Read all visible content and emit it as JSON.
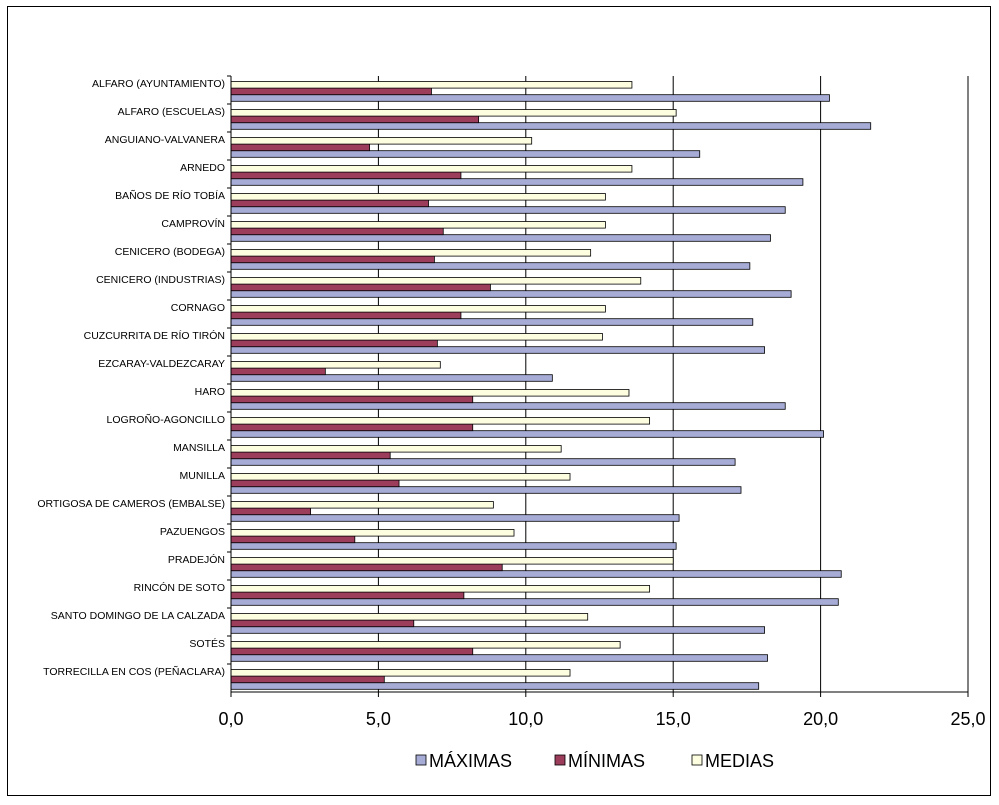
{
  "chart_data": {
    "type": "bar",
    "orientation": "horizontal",
    "categories": [
      "ALFARO (AYUNTAMIENTO)",
      "ALFARO (ESCUELAS)",
      "ANGUIANO-VALVANERA",
      "ARNEDO",
      "BAÑOS DE RÍO TOBÍA",
      "CAMPROVÍN",
      "CENICERO (BODEGA)",
      "CENICERO (INDUSTRIAS)",
      "CORNAGO",
      "CUZCURRITA DE RÍO TIRÓN",
      "EZCARAY-VALDEZCARAY",
      "HARO",
      "LOGROÑO-AGONCILLO",
      "MANSILLA",
      "MUNILLA",
      "ORTIGOSA DE CAMEROS (EMBALSE)",
      "PAZUENGOS",
      "PRADEJÓN",
      "RINCÓN DE SOTO",
      "SANTO DOMINGO DE LA CALZADA",
      "SOTÉS",
      "TORRECILLA EN COS (PEÑACLARA)"
    ],
    "series": [
      {
        "name": "MÁXIMAS",
        "color": "#a6acd6",
        "values": [
          20.3,
          21.7,
          15.9,
          19.4,
          18.8,
          18.3,
          17.6,
          19.0,
          17.7,
          18.1,
          10.9,
          18.8,
          20.1,
          17.1,
          17.3,
          15.2,
          15.1,
          20.7,
          20.6,
          18.1,
          18.2,
          17.9
        ]
      },
      {
        "name": "MÍNIMAS",
        "color": "#9c3d5c",
        "values": [
          6.8,
          8.4,
          4.7,
          7.8,
          6.7,
          7.2,
          6.9,
          8.8,
          7.8,
          7.0,
          3.2,
          8.2,
          8.2,
          5.4,
          5.7,
          2.7,
          4.2,
          9.2,
          7.9,
          6.2,
          8.2,
          5.2
        ]
      },
      {
        "name": "MEDIAS",
        "color": "#fdfde0",
        "values": [
          13.6,
          15.1,
          10.2,
          13.6,
          12.7,
          12.7,
          12.2,
          13.9,
          12.7,
          12.6,
          7.1,
          13.5,
          14.2,
          11.2,
          11.5,
          8.9,
          9.6,
          15.0,
          14.2,
          12.1,
          13.2,
          11.5
        ]
      }
    ],
    "xlim": [
      0,
      25
    ],
    "xticks": [
      "0,0",
      "5,0",
      "10,0",
      "15,0",
      "20,0",
      "25,0"
    ],
    "grid": true,
    "legend": "bottom"
  }
}
